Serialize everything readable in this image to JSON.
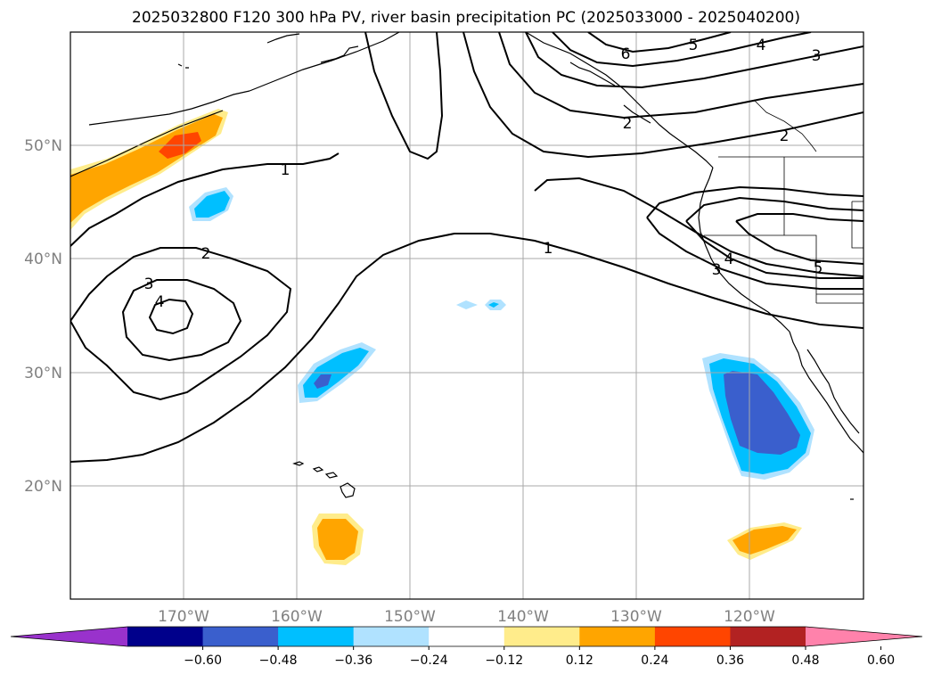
{
  "title": "2025032800 F120 300 hPa PV, river basin precipitation PC (2025033000 - 2025040200)",
  "map": {
    "lat_labels": [
      "50°N",
      "40°N",
      "30°N",
      "20°N"
    ],
    "lon_labels": [
      "170°W",
      "160°W",
      "150°W",
      "140°W",
      "130°W",
      "120°W"
    ],
    "lon_range": [
      -180,
      -110
    ],
    "lat_range": [
      10,
      60
    ],
    "gridlines": true
  },
  "pv_contour_labels": [
    "1",
    "1",
    "2",
    "2",
    "2",
    "3",
    "3",
    "3",
    "4",
    "4",
    "4",
    "5",
    "5",
    "6"
  ],
  "colorbar": {
    "ticks": [
      "−0.60",
      "−0.48",
      "−0.36",
      "−0.24",
      "−0.12",
      "0.12",
      "0.24",
      "0.36",
      "0.48",
      "0.60"
    ],
    "colors": [
      "#9932cc",
      "#00008b",
      "#3a5fcd",
      "#00bfff",
      "#b0e2ff",
      "#ffffff",
      "#ffec8b",
      "#ffa500",
      "#ff4500",
      "#b22222",
      "#ff82ab"
    ],
    "extend": "both"
  },
  "shading_colors": {
    "light_yellow": "#ffec8b",
    "orange": "#ffa500",
    "orange_red": "#ff4500",
    "light_blue": "#b0e2ff",
    "sky_blue": "#00bfff",
    "royal_blue": "#3a5fcd"
  }
}
